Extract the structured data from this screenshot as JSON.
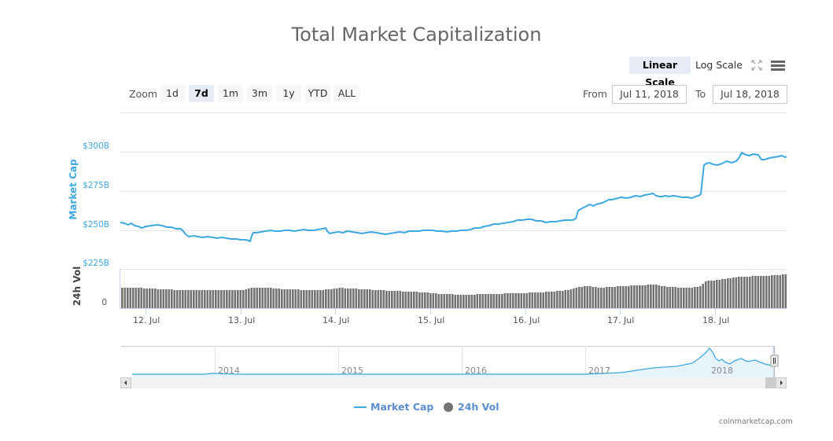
{
  "title": "Total Market Capitalization",
  "scale_buttons": {
    "linear": "Linear Scale",
    "log": "Log Scale",
    "active": "linear"
  },
  "icons": {
    "fullscreen": "fullscreen-icon",
    "menu": "hamburger-menu-icon"
  },
  "zoom": {
    "label": "Zoom",
    "buttons": [
      "1d",
      "7d",
      "1m",
      "3m",
      "1y",
      "YTD",
      "ALL"
    ],
    "active": "7d"
  },
  "range": {
    "from_label": "From",
    "from_value": "Jul 11, 2018",
    "to_label": "To",
    "to_value": "Jul 18, 2018"
  },
  "axes": {
    "y_label": "Market Cap",
    "y_ticks": [
      "$300B",
      "$275B",
      "$250B",
      "$225B"
    ],
    "vol_label": "24h Vol",
    "vol_ticks": [
      "0"
    ],
    "x_ticks": [
      "12. Jul",
      "13. Jul",
      "14. Jul",
      "15. Jul",
      "16. Jul",
      "17. Jul",
      "18. Jul"
    ]
  },
  "navigator": {
    "years": [
      "2014",
      "2015",
      "2016",
      "2017",
      "2018"
    ]
  },
  "legend": {
    "market_cap": "Market Cap",
    "volume": "24h Vol"
  },
  "credit": "coinmarketcap.com",
  "colors": {
    "line": "#3ea8e0",
    "bars": "#737373",
    "title": "#666666",
    "legend": "#5b8fd1",
    "active_btn": "#e6ebf5"
  },
  "chart_data": {
    "type": "line",
    "title": "Total Market Capitalization",
    "xlabel": "",
    "ylabel": "Market Cap",
    "ylim": [
      225,
      325
    ],
    "y_unit": "$B",
    "x_range": [
      "Jul 11, 2018",
      "Jul 18, 2018"
    ],
    "categories": [
      "12. Jul",
      "13. Jul",
      "14. Jul",
      "15. Jul",
      "16. Jul",
      "17. Jul",
      "18. Jul"
    ],
    "series": [
      {
        "name": "Market Cap",
        "type": "line",
        "x": [
          "Jul 11 18:00",
          "Jul 12 00:00",
          "Jul 12 06:00",
          "Jul 12 12:00",
          "Jul 12 18:00",
          "Jul 13 00:00",
          "Jul 13 03:00",
          "Jul 13 06:00",
          "Jul 13 12:00",
          "Jul 13 18:00",
          "Jul 14 00:00",
          "Jul 14 06:00",
          "Jul 14 12:00",
          "Jul 14 18:00",
          "Jul 15 00:00",
          "Jul 15 06:00",
          "Jul 15 12:00",
          "Jul 15 18:00",
          "Jul 16 00:00",
          "Jul 16 06:00",
          "Jul 16 12:00",
          "Jul 16 15:00",
          "Jul 16 18:00",
          "Jul 17 00:00",
          "Jul 17 06:00",
          "Jul 17 12:00",
          "Jul 17 18:00",
          "Jul 18 00:00",
          "Jul 18 03:00",
          "Jul 18 09:00",
          "Jul 18 15:00",
          "Jul 18 20:00"
        ],
        "values": [
          255,
          253.5,
          252.5,
          246,
          245,
          244.5,
          250,
          250.5,
          251,
          249,
          249,
          248.5,
          249,
          250,
          251,
          254,
          256,
          256.5,
          257,
          265,
          268,
          270,
          273,
          273,
          272,
          271,
          272,
          287,
          291,
          297,
          293,
          296
        ]
      },
      {
        "name": "24h Vol",
        "type": "bar",
        "note": "relative heights only; axis shows 0 baseline",
        "x": [
          "Jul 12",
          "Jul 13",
          "Jul 14",
          "Jul 15",
          "Jul 16",
          "Jul 17",
          "Jul 18",
          "Jul 18 end"
        ],
        "values": [
          52,
          52,
          52,
          46,
          42,
          50,
          60,
          82
        ]
      }
    ],
    "legend": [
      "Market Cap",
      "24h Vol"
    ],
    "legend_position": "bottom",
    "grid": true
  }
}
